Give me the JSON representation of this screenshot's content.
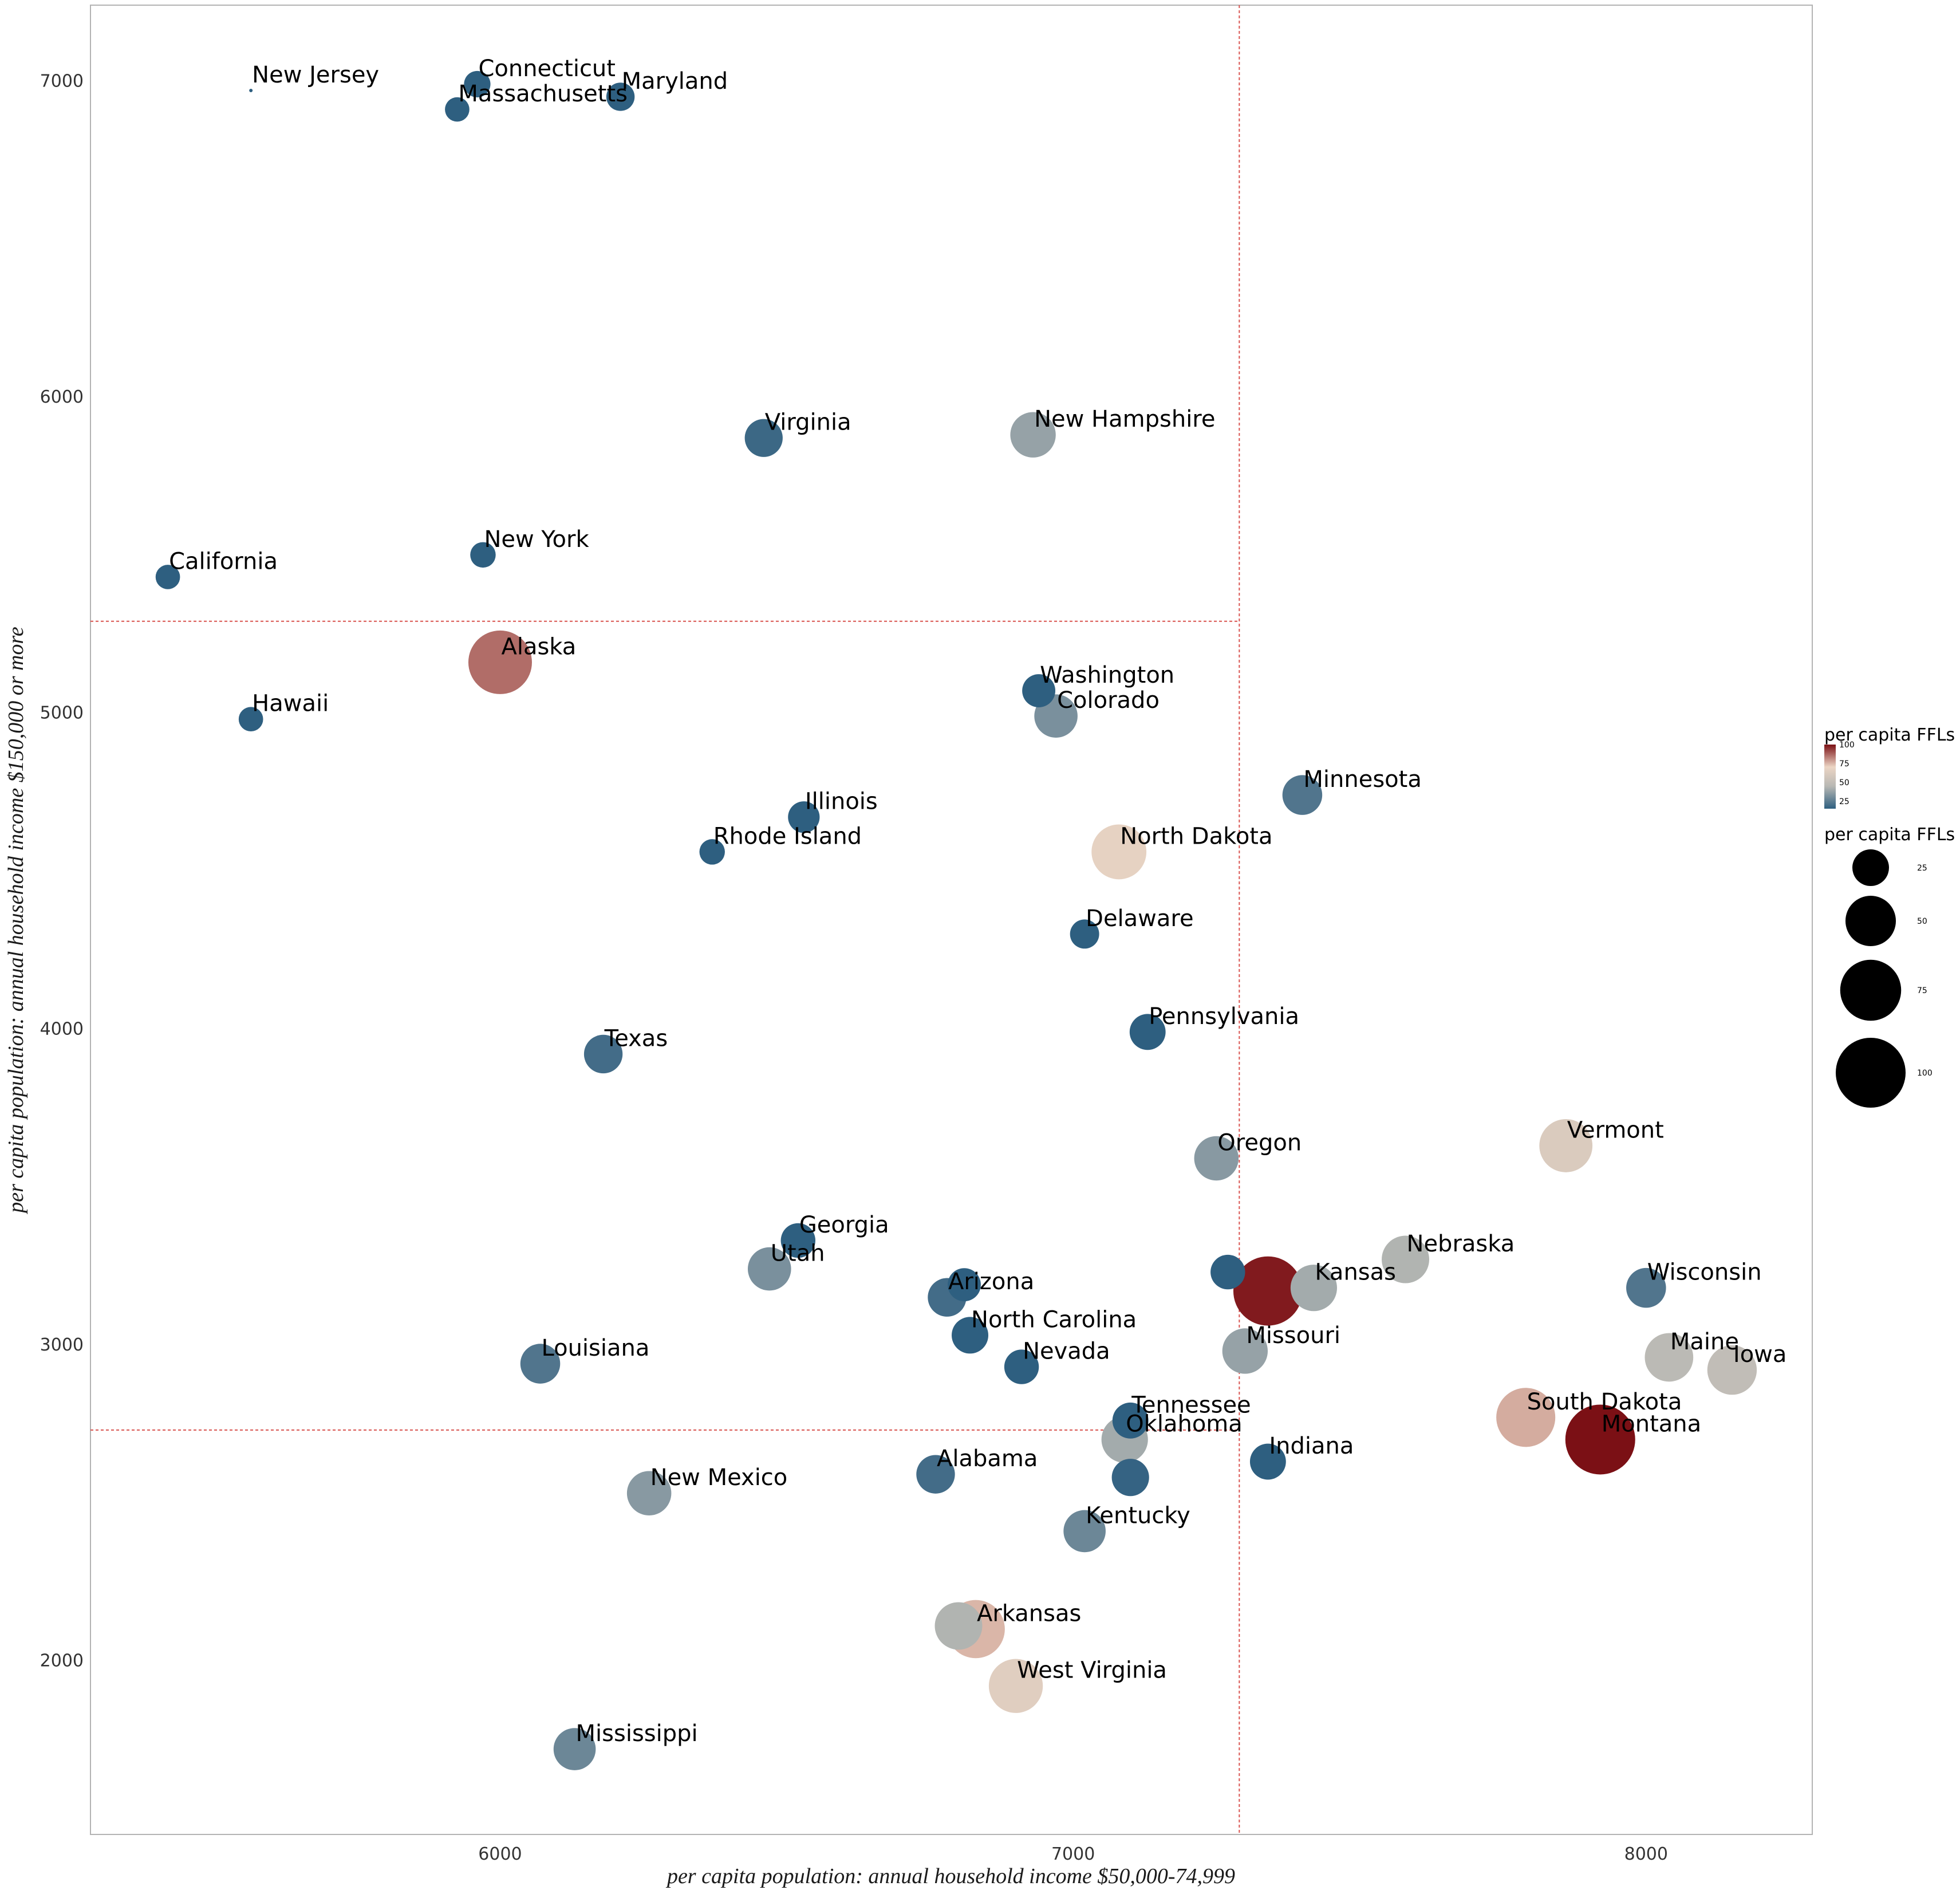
{
  "chart_data": {
    "type": "scatter",
    "xlabel": "per capita population: annual household income $50,000-74,999",
    "ylabel": "per capita population: annual household income $150,000 or more",
    "xlim": [
      5285,
      8290
    ],
    "ylim": [
      1450,
      7240
    ],
    "xticks": [
      6000,
      7000,
      8000
    ],
    "yticks": [
      2000,
      3000,
      4000,
      5000,
      6000,
      7000
    ],
    "grid": false,
    "reference_lines": {
      "vertical_x": 7290,
      "horizontal_y_upper": 5290,
      "horizontal_y_lower": 2730
    },
    "reference_line_color": "#d9534f",
    "colors": {
      "low": "#2e5f80",
      "mid": "#b8b8b4",
      "high_light": "#ecd5c4",
      "high": "#7b1015"
    },
    "legend": {
      "position": "right",
      "color_title": "per capita FFLs",
      "color_ticks": [
        100,
        75,
        50,
        25
      ],
      "size_title": "per capita FFLs",
      "size_ticks": [
        25,
        50,
        75,
        100
      ]
    },
    "points": [
      {
        "label": "New Jersey",
        "x": 5565,
        "y": 6970,
        "ffl": 0
      },
      {
        "label": "Connecticut",
        "x": 5960,
        "y": 6990,
        "ffl": 12
      },
      {
        "label": "Massachusetts",
        "x": 5925,
        "y": 6910,
        "ffl": 10
      },
      {
        "label": "Maryland",
        "x": 6210,
        "y": 6950,
        "ffl": 14
      },
      {
        "label": "Virginia",
        "x": 6460,
        "y": 5870,
        "ffl": 27
      },
      {
        "label": "New Hampshire",
        "x": 6930,
        "y": 5880,
        "ffl": 40
      },
      {
        "label": "California",
        "x": 5420,
        "y": 5430,
        "ffl": 10
      },
      {
        "label": "New York",
        "x": 5970,
        "y": 5500,
        "ffl": 11
      },
      {
        "label": "Alaska",
        "x": 6000,
        "y": 5160,
        "ffl": 82
      },
      {
        "label": "Washington",
        "x": 6940,
        "y": 5070,
        "ffl": 20
      },
      {
        "label": "Colorado",
        "x": 6970,
        "y": 4990,
        "ffl": 36
      },
      {
        "label": "Hawaii",
        "x": 5565,
        "y": 4980,
        "ffl": 10
      },
      {
        "label": "Minnesota",
        "x": 7400,
        "y": 4740,
        "ffl": 30
      },
      {
        "label": "Illinois",
        "x": 6530,
        "y": 4670,
        "ffl": 18
      },
      {
        "label": "Rhode Island",
        "x": 6370,
        "y": 4560,
        "ffl": 11
      },
      {
        "label": "North Dakota",
        "x": 7080,
        "y": 4560,
        "ffl": 60
      },
      {
        "label": "Delaware",
        "x": 7020,
        "y": 4300,
        "ffl": 15
      },
      {
        "label": "Pennsylvania",
        "x": 7130,
        "y": 3990,
        "ffl": 24
      },
      {
        "label": "Texas",
        "x": 6180,
        "y": 3920,
        "ffl": 28
      },
      {
        "label": "Vermont",
        "x": 7860,
        "y": 3630,
        "ffl": 56
      },
      {
        "label": "Oregon",
        "x": 7250,
        "y": 3590,
        "ffl": 38
      },
      {
        "label": "Georgia",
        "x": 6520,
        "y": 3330,
        "ffl": 22
      },
      {
        "label": "Utah",
        "x": 6470,
        "y": 3240,
        "ffl": 36
      },
      {
        "label": "Nebraska",
        "x": 7580,
        "y": 3270,
        "ffl": 44
      },
      {
        "label": "Wisconsin",
        "x": 8000,
        "y": 3180,
        "ffl": 30
      },
      {
        "label": "Kansas",
        "x": 7420,
        "y": 3180,
        "ffl": 42
      },
      {
        "label": "Arizona",
        "x": 6780,
        "y": 3150,
        "ffl": 28
      },
      {
        "label": "Louisiana",
        "x": 6070,
        "y": 2940,
        "ffl": 30
      },
      {
        "label": "North Carolina",
        "x": 6820,
        "y": 3030,
        "ffl": 25
      },
      {
        "label": "Missouri",
        "x": 7300,
        "y": 2980,
        "ffl": 40
      },
      {
        "label": "Maine",
        "x": 8040,
        "y": 2960,
        "ffl": 46
      },
      {
        "label": "Iowa",
        "x": 8150,
        "y": 2920,
        "ffl": 48
      },
      {
        "label": "Nevada",
        "x": 6910,
        "y": 2930,
        "ffl": 22
      },
      {
        "label": "Tennessee",
        "x": 7100,
        "y": 2760,
        "ffl": 24
      },
      {
        "label": "South Dakota",
        "x": 7790,
        "y": 2770,
        "ffl": 70
      },
      {
        "label": "Oklahoma",
        "x": 7090,
        "y": 2700,
        "ffl": 42
      },
      {
        "label": "Montana",
        "x": 7920,
        "y": 2700,
        "ffl": 100
      },
      {
        "label": "Indiana",
        "x": 7340,
        "y": 2630,
        "ffl": 24
      },
      {
        "label": "Alabama",
        "x": 6760,
        "y": 2590,
        "ffl": 28
      },
      {
        "label": "New Mexico",
        "x": 6260,
        "y": 2530,
        "ffl": 38
      },
      {
        "label": "Kentucky",
        "x": 7020,
        "y": 2410,
        "ffl": 34
      },
      {
        "label": "Arkansas",
        "x": 6830,
        "y": 2100,
        "ffl": 68
      },
      {
        "label": "West Virginia",
        "x": 6900,
        "y": 1920,
        "ffl": 58
      },
      {
        "label": "Mississippi",
        "x": 6130,
        "y": 1720,
        "ffl": 34
      }
    ],
    "unlabeled_points": [
      {
        "x": 6810,
        "y": 3190,
        "ffl": 20
      },
      {
        "x": 7270,
        "y": 3230,
        "ffl": 22
      },
      {
        "x": 7340,
        "y": 3170,
        "ffl": 98
      },
      {
        "x": 7100,
        "y": 2580,
        "ffl": 26
      },
      {
        "x": 6800,
        "y": 2110,
        "ffl": 44
      }
    ]
  }
}
